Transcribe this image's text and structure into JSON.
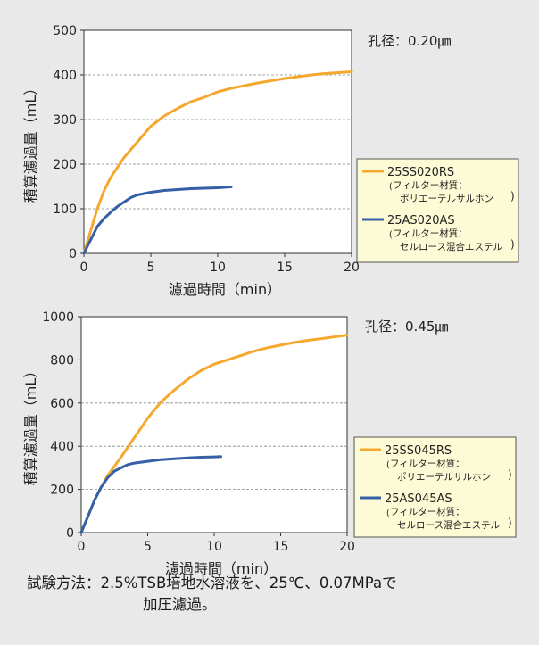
{
  "colors": {
    "background": "#e9e9e9",
    "plot_bg": "#ffffff",
    "legend_bg": "#fdfbd5",
    "orange": "#f5a82e",
    "blue": "#3560a8",
    "grid": "#888888"
  },
  "chart_data": [
    {
      "type": "line",
      "annotation": "孔径：0.20㎛",
      "xlabel": "濾過時間（min）",
      "ylabel": "積算濾過量（mL）",
      "xlim": [
        0,
        20
      ],
      "ylim": [
        0,
        500
      ],
      "xticks": [
        "0",
        "5",
        "10",
        "15",
        "20"
      ],
      "yticks": [
        "0",
        "100",
        "200",
        "300",
        "400",
        "500"
      ],
      "grid": "horizontal dashed",
      "legend_position": "right",
      "series": [
        {
          "name": "25SS020RS",
          "note_line1": "フィルター材質：",
          "note_line2": "ポリエーテルサルホン",
          "color": "#f5a82e",
          "x": [
            0,
            0.5,
            1,
            1.5,
            2,
            3,
            4,
            5,
            6,
            7,
            8,
            9,
            10,
            11,
            12,
            13,
            14,
            15,
            16,
            17,
            18,
            19,
            20
          ],
          "y": [
            0,
            50,
            100,
            140,
            170,
            215,
            250,
            285,
            308,
            325,
            340,
            350,
            362,
            370,
            376,
            382,
            387,
            392,
            396,
            400,
            403,
            405,
            407
          ]
        },
        {
          "name": "25AS020AS",
          "note_line1": "フィルター材質：",
          "note_line2": "セルロース混合エステル",
          "color": "#3560a8",
          "x": [
            0,
            0.5,
            1,
            1.5,
            2,
            2.5,
            3,
            3.5,
            4,
            5,
            6,
            7,
            8,
            9,
            10,
            11
          ],
          "y": [
            0,
            30,
            60,
            78,
            92,
            105,
            115,
            125,
            131,
            137,
            141,
            143,
            145,
            146,
            147,
            149
          ]
        }
      ]
    },
    {
      "type": "line",
      "annotation": "孔径：0.45㎛",
      "xlabel": "濾過時間（min）",
      "ylabel": "積算濾過量（mL）",
      "xlim": [
        0,
        20
      ],
      "ylim": [
        0,
        1000
      ],
      "xticks": [
        "0",
        "5",
        "10",
        "15",
        "20"
      ],
      "yticks": [
        "0",
        "200",
        "400",
        "600",
        "800",
        "1000"
      ],
      "grid": "horizontal dashed",
      "legend_position": "right",
      "series": [
        {
          "name": "25SS045RS",
          "note_line1": "フィルター材質：",
          "note_line2": "ポリエーテルサルホン",
          "color": "#f5a82e",
          "x": [
            0,
            0.5,
            1,
            1.5,
            2,
            3,
            4,
            5,
            6,
            7,
            8,
            9,
            10,
            11,
            12,
            13,
            14,
            15,
            16,
            17,
            18,
            19,
            20
          ],
          "y": [
            0,
            75,
            150,
            210,
            265,
            350,
            440,
            530,
            605,
            660,
            710,
            750,
            780,
            800,
            820,
            840,
            856,
            868,
            880,
            890,
            898,
            906,
            915
          ]
        },
        {
          "name": "25AS045AS",
          "note_line1": "フィルター材質：",
          "note_line2": "セルロース混合エステル",
          "color": "#3560a8",
          "x": [
            0,
            0.5,
            1,
            1.5,
            2,
            2.5,
            3,
            3.5,
            4,
            5,
            6,
            7,
            8,
            9,
            10,
            10.5
          ],
          "y": [
            0,
            75,
            150,
            210,
            255,
            285,
            300,
            315,
            322,
            330,
            338,
            342,
            346,
            349,
            351,
            352
          ]
        }
      ]
    }
  ],
  "footnote": {
    "label": "試験方法：",
    "text_line1": "2.5%TSB培地水溶液を、25℃、0.07MPaで",
    "text_line2": "加圧濾過。"
  }
}
